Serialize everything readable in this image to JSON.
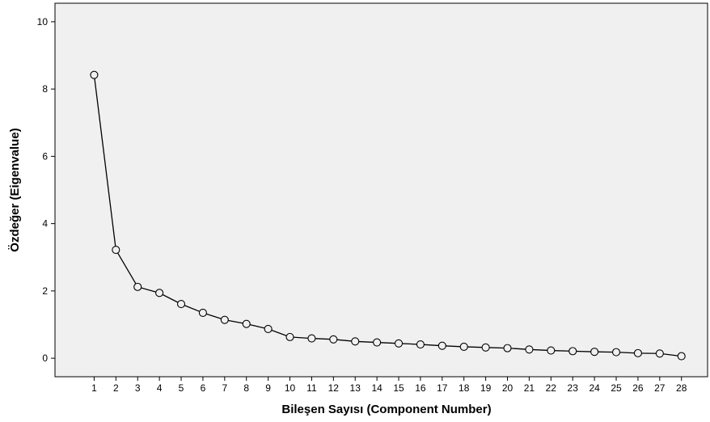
{
  "chart_data": {
    "type": "line",
    "title": "",
    "xlabel": "Bileşen Sayısı (Component Number)",
    "ylabel": "Özdeğer (Eigenvalue)",
    "x": [
      1,
      2,
      3,
      4,
      5,
      6,
      7,
      8,
      9,
      10,
      11,
      12,
      13,
      14,
      15,
      16,
      17,
      18,
      19,
      20,
      21,
      22,
      23,
      24,
      25,
      26,
      27,
      28
    ],
    "x_tick_labels": [
      "1",
      "2",
      "3",
      "4",
      "5",
      "6",
      "7",
      "8",
      "9",
      "10",
      "11",
      "12",
      "13",
      "14",
      "15",
      "16",
      "17",
      "18",
      "19",
      "20",
      "21",
      "22",
      "23",
      "24",
      "25",
      "26",
      "27",
      "28"
    ],
    "series": [
      {
        "values": [
          8.42,
          3.22,
          2.12,
          1.94,
          1.61,
          1.35,
          1.14,
          1.02,
          0.87,
          0.63,
          0.59,
          0.56,
          0.5,
          0.47,
          0.44,
          0.41,
          0.37,
          0.34,
          0.32,
          0.3,
          0.26,
          0.23,
          0.21,
          0.19,
          0.18,
          0.15,
          0.14,
          0.06
        ]
      }
    ],
    "ylim": [
      -0.55,
      10.55
    ],
    "xlim": [
      -0.8,
      29.2
    ],
    "y_ticks": [
      0,
      2,
      4,
      6,
      8,
      10
    ],
    "y_tick_labels": [
      "0",
      "2",
      "4",
      "6",
      "8",
      "10"
    ],
    "grid": false,
    "legend": "none",
    "colors": {
      "plot_background": "#f0f0f0",
      "line": "#000000",
      "marker_fill": "#f0f0f0",
      "marker_stroke": "#000000"
    },
    "marker": "open-circle"
  }
}
